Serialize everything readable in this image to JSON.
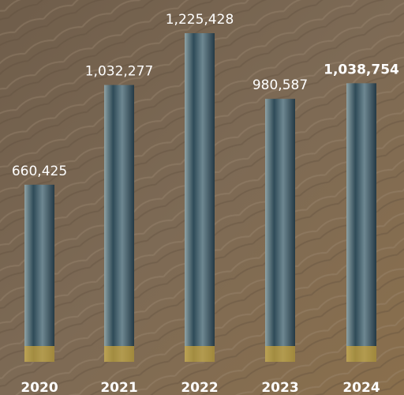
{
  "chart_data": {
    "type": "bar",
    "categories": [
      "2020",
      "2021",
      "2022",
      "2023",
      "2024"
    ],
    "values": [
      660425,
      1032277,
      1225428,
      980587,
      1038754
    ],
    "value_labels": [
      "660,425",
      "1,032,277",
      "1,225,428",
      "980,587",
      "1,038,754"
    ],
    "color": "#3f5e6e"
  }
}
